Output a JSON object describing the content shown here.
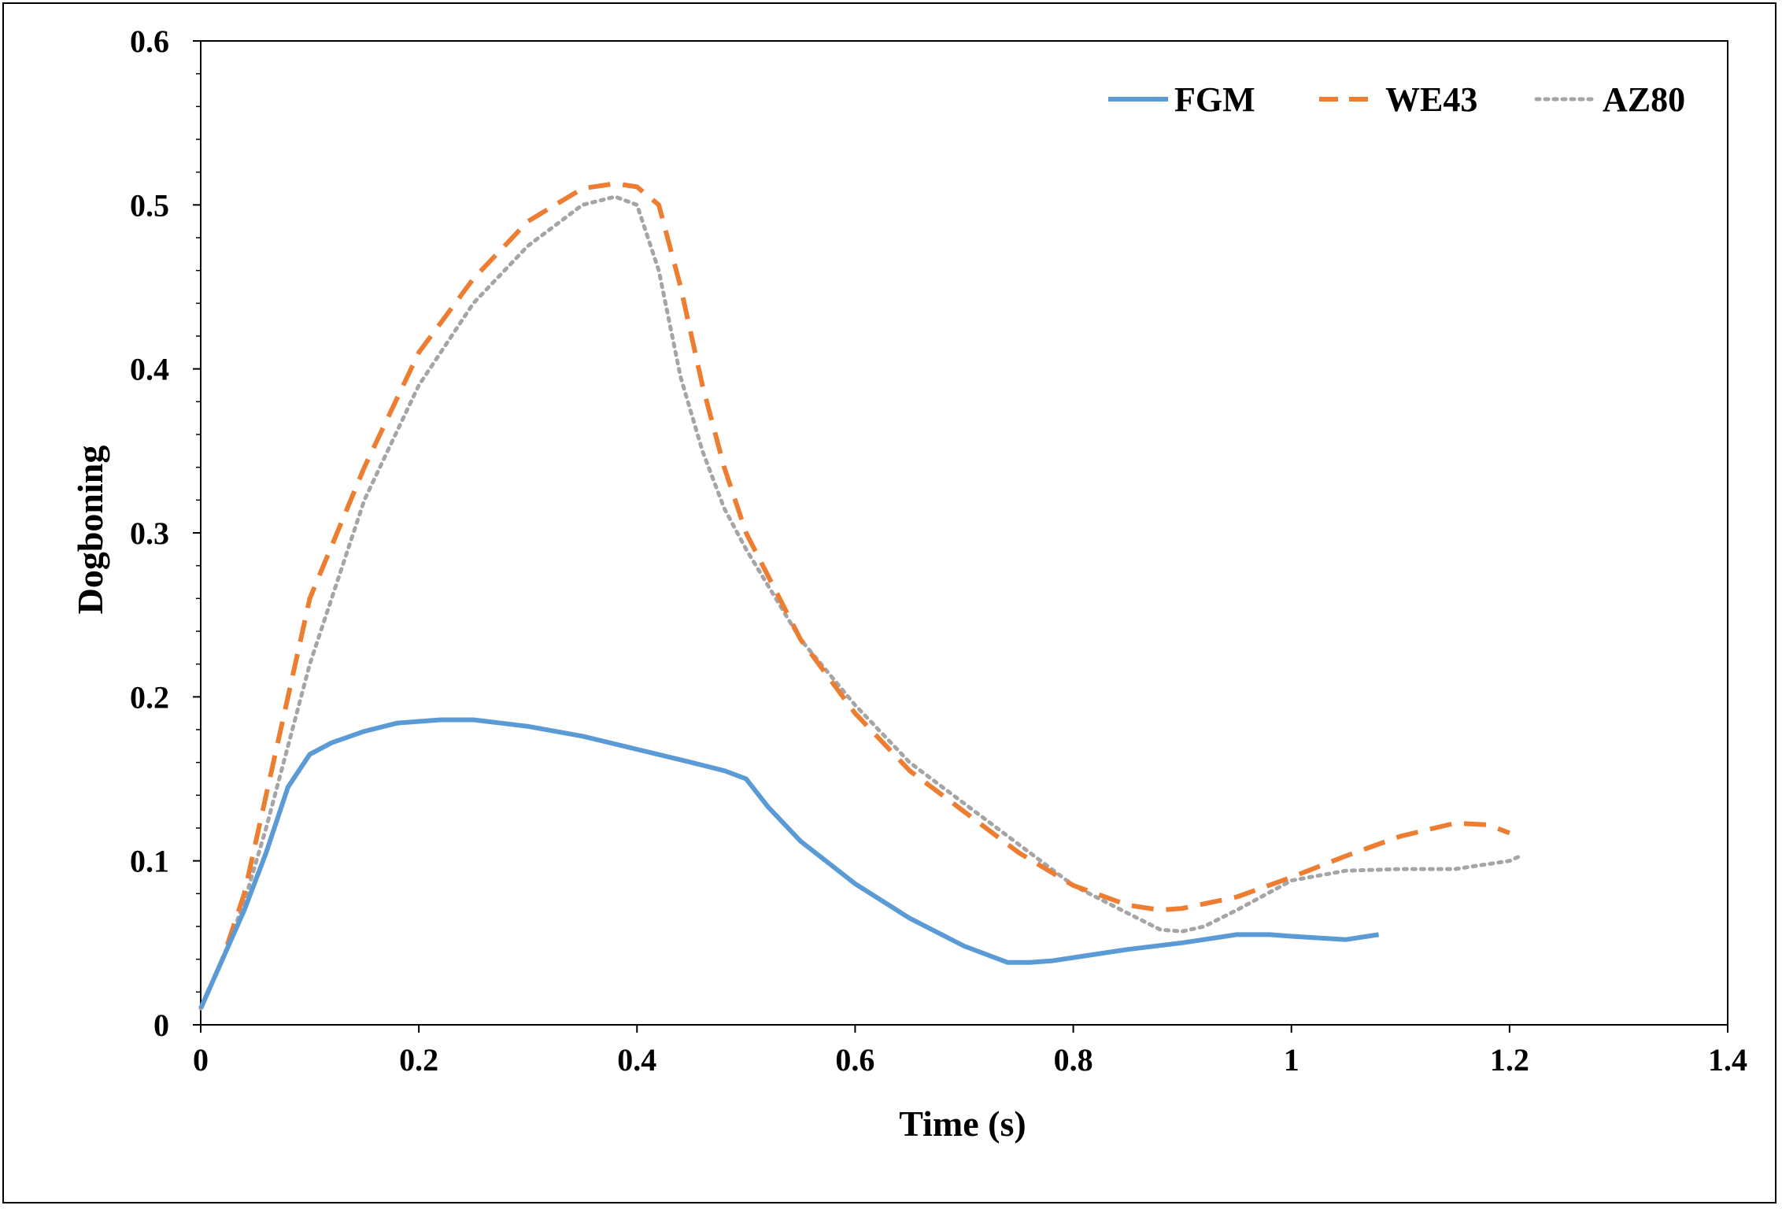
{
  "chart_data": {
    "type": "line",
    "title": "",
    "xlabel": "Time (s)",
    "ylabel": "Dogboning",
    "xlim": [
      0,
      1.4
    ],
    "ylim": [
      0,
      0.6
    ],
    "xticks": [
      0,
      0.2,
      0.4,
      0.6,
      0.8,
      1,
      1.2,
      1.4
    ],
    "xtick_labels": [
      "0",
      "0.2",
      "0.4",
      "0.6",
      "0.8",
      "1",
      "1.2",
      "1.4"
    ],
    "yticks": [
      0,
      0.1,
      0.2,
      0.3,
      0.4,
      0.5,
      0.6
    ],
    "ytick_labels": [
      "0",
      "0.1",
      "0.2",
      "0.3",
      "0.4",
      "0.5",
      "0.6"
    ],
    "grid": false,
    "legend_position": "top-right",
    "series": [
      {
        "name": "FGM",
        "color": "#5B9BD5",
        "style": "solid",
        "x": [
          0,
          0.02,
          0.04,
          0.06,
          0.08,
          0.1,
          0.12,
          0.15,
          0.18,
          0.22,
          0.25,
          0.3,
          0.35,
          0.4,
          0.45,
          0.48,
          0.5,
          0.52,
          0.55,
          0.6,
          0.65,
          0.7,
          0.74,
          0.76,
          0.78,
          0.8,
          0.85,
          0.9,
          0.95,
          0.98,
          1.0,
          1.05,
          1.08
        ],
        "y": [
          0.01,
          0.04,
          0.07,
          0.105,
          0.145,
          0.165,
          0.172,
          0.179,
          0.184,
          0.186,
          0.186,
          0.182,
          0.176,
          0.168,
          0.16,
          0.155,
          0.15,
          0.133,
          0.112,
          0.086,
          0.065,
          0.048,
          0.038,
          0.038,
          0.039,
          0.041,
          0.046,
          0.05,
          0.055,
          0.055,
          0.054,
          0.052,
          0.055
        ]
      },
      {
        "name": "WE43",
        "color": "#ED7D31",
        "style": "dashed",
        "x": [
          0,
          0.02,
          0.04,
          0.06,
          0.08,
          0.1,
          0.15,
          0.2,
          0.25,
          0.3,
          0.35,
          0.38,
          0.4,
          0.42,
          0.44,
          0.46,
          0.48,
          0.5,
          0.55,
          0.6,
          0.65,
          0.7,
          0.75,
          0.8,
          0.85,
          0.88,
          0.9,
          0.95,
          1.0,
          1.05,
          1.1,
          1.15,
          1.18,
          1.2
        ],
        "y": [
          0.01,
          0.04,
          0.08,
          0.14,
          0.2,
          0.26,
          0.34,
          0.41,
          0.455,
          0.49,
          0.51,
          0.513,
          0.511,
          0.5,
          0.45,
          0.39,
          0.34,
          0.3,
          0.235,
          0.19,
          0.155,
          0.13,
          0.105,
          0.085,
          0.073,
          0.07,
          0.071,
          0.078,
          0.09,
          0.103,
          0.115,
          0.123,
          0.122,
          0.117
        ]
      },
      {
        "name": "AZ80",
        "color": "#A5A5A5",
        "style": "dotted",
        "x": [
          0,
          0.02,
          0.04,
          0.06,
          0.08,
          0.1,
          0.15,
          0.2,
          0.25,
          0.3,
          0.35,
          0.38,
          0.4,
          0.42,
          0.44,
          0.46,
          0.48,
          0.5,
          0.55,
          0.6,
          0.65,
          0.7,
          0.75,
          0.8,
          0.85,
          0.88,
          0.9,
          0.92,
          0.95,
          1.0,
          1.05,
          1.1,
          1.15,
          1.2,
          1.21
        ],
        "y": [
          0.01,
          0.04,
          0.075,
          0.12,
          0.17,
          0.22,
          0.32,
          0.39,
          0.44,
          0.475,
          0.5,
          0.505,
          0.5,
          0.46,
          0.395,
          0.35,
          0.315,
          0.29,
          0.235,
          0.195,
          0.16,
          0.135,
          0.11,
          0.085,
          0.068,
          0.058,
          0.057,
          0.06,
          0.07,
          0.088,
          0.094,
          0.095,
          0.095,
          0.1,
          0.103
        ]
      }
    ]
  }
}
